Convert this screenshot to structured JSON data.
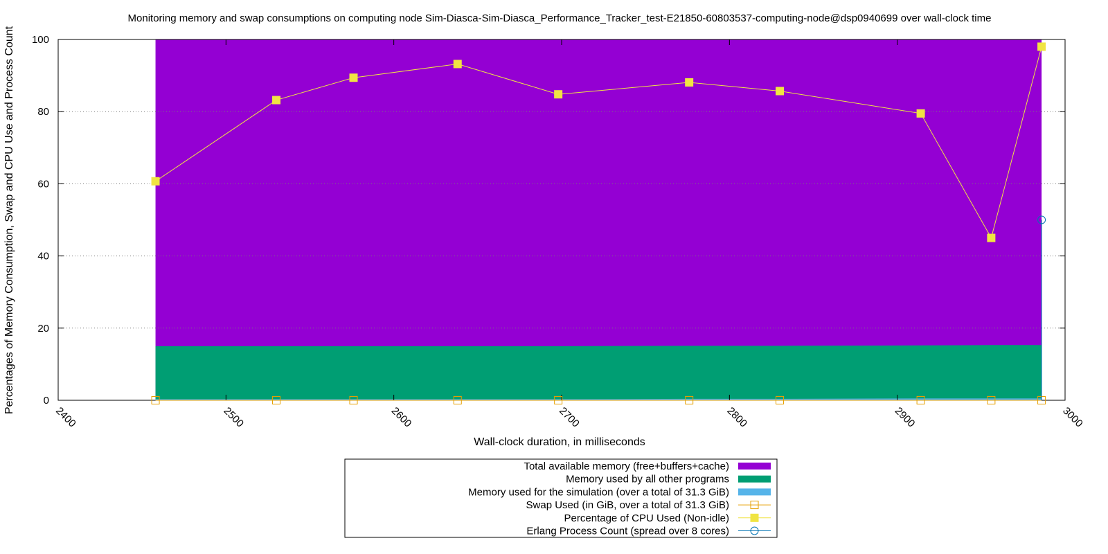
{
  "chart_data": {
    "type": "area",
    "title": "Monitoring memory and swap consumptions on computing node Sim-Diasca-Sim-Diasca_Performance_Tracker_test-E21850-60803537-computing-node@dsp0940699 over wall-clock time",
    "xlabel": "Wall-clock duration, in milliseconds",
    "ylabel": "Percentages of Memory Consumption, Swap and CPU Use and Process Count",
    "xlim": [
      2400,
      3000
    ],
    "ylim": [
      0,
      100
    ],
    "x_ticks": [
      "2400",
      "2500",
      "2600",
      "2700",
      "2800",
      "2900",
      "3000"
    ],
    "y_ticks": [
      "0",
      "20",
      "40",
      "60",
      "80",
      "100"
    ],
    "grid": "horizontal dotted",
    "legend_position": "bottom",
    "x": [
      2458,
      2530,
      2576,
      2638,
      2698,
      2776,
      2830,
      2914,
      2956,
      2986
    ],
    "series": [
      {
        "name": "Total available memory (free+buffers+cache)",
        "kind": "area",
        "color": "#9400d3",
        "values": [
          100,
          100,
          100,
          100,
          100,
          100,
          100,
          100,
          100,
          100
        ]
      },
      {
        "name": "Memory used by all other programs",
        "kind": "area",
        "color": "#009e73",
        "values": [
          15.0,
          15.0,
          15.0,
          15.0,
          15.0,
          15.1,
          15.1,
          15.2,
          15.3,
          15.3
        ]
      },
      {
        "name": "Memory used for the simulation (over a total of 31.3 GiB)",
        "kind": "area",
        "color": "#56b4e9",
        "values": [
          0.3,
          0.3,
          0.3,
          0.3,
          0.3,
          0.4,
          0.4,
          0.5,
          0.5,
          0.5
        ]
      },
      {
        "name": "Swap Used (in GiB, over a total of 31.3 GiB)",
        "kind": "line-open-square",
        "color": "#e69f00",
        "values": [
          0,
          0,
          0,
          0,
          0,
          0,
          0,
          0,
          0,
          0
        ]
      },
      {
        "name": "Percentage of CPU Used (Non-idle)",
        "kind": "line-filled-square",
        "color": "#f0e442",
        "values": [
          60.7,
          83.2,
          89.4,
          93.2,
          84.8,
          88.1,
          85.7,
          79.5,
          45.0,
          98.0
        ]
      },
      {
        "name": "Erlang Process Count (spread over 8 cores)",
        "kind": "line-open-circle",
        "color": "#0072b2",
        "x": [
          2986
        ],
        "values": [
          50
        ]
      }
    ]
  }
}
